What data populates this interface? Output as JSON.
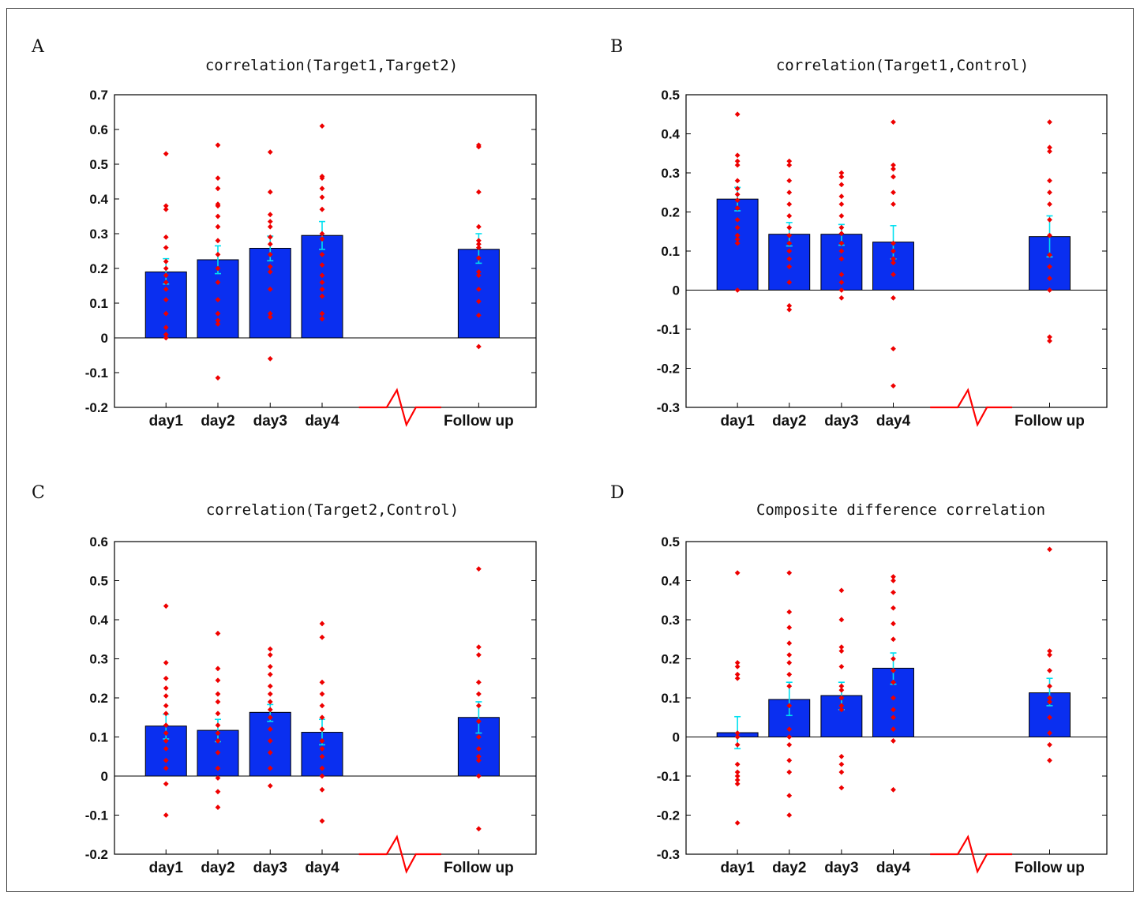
{
  "panels": [
    {
      "letter": "A",
      "chart_data": {
        "type": "bar",
        "title": "correlation(Target1,Target2)",
        "categories": [
          "day1",
          "day2",
          "day3",
          "day4",
          "Follow up"
        ],
        "values": [
          0.19,
          0.225,
          0.258,
          0.295,
          0.255
        ],
        "error_lo": [
          0.155,
          0.185,
          0.222,
          0.255,
          0.215
        ],
        "error_hi": [
          0.228,
          0.265,
          0.293,
          0.335,
          0.3
        ],
        "points": [
          [
            0.53,
            0.38,
            0.37,
            0.29,
            0.26,
            0.22,
            0.2,
            0.18,
            0.16,
            0.14,
            0.11,
            0.07,
            0.03,
            0.01,
            0.0
          ],
          [
            0.555,
            0.46,
            0.43,
            0.385,
            0.38,
            0.35,
            0.32,
            0.28,
            0.24,
            0.2,
            0.16,
            0.11,
            0.07,
            0.05,
            0.04,
            -0.115
          ],
          [
            0.535,
            0.42,
            0.355,
            0.335,
            0.32,
            0.29,
            0.27,
            0.24,
            0.205,
            0.19,
            0.14,
            0.07,
            0.06,
            -0.06
          ],
          [
            0.61,
            0.465,
            0.46,
            0.43,
            0.405,
            0.37,
            0.3,
            0.285,
            0.24,
            0.21,
            0.18,
            0.16,
            0.14,
            0.12,
            0.07,
            0.055
          ],
          [
            0.555,
            0.55,
            0.42,
            0.32,
            0.28,
            0.27,
            0.26,
            0.23,
            0.19,
            0.18,
            0.14,
            0.105,
            0.065,
            -0.025
          ]
        ],
        "ylim": [
          -0.2,
          0.7
        ],
        "yticks": [
          "-0.2",
          "-0.1",
          "0",
          "0.1",
          "0.2",
          "0.3",
          "0.4",
          "0.5",
          "0.6",
          "0.7"
        ]
      }
    },
    {
      "letter": "B",
      "chart_data": {
        "type": "bar",
        "title": "correlation(Target1,Control)",
        "categories": [
          "day1",
          "day2",
          "day3",
          "day4",
          "Follow up"
        ],
        "values": [
          0.233,
          0.143,
          0.143,
          0.123,
          0.137
        ],
        "error_lo": [
          0.203,
          0.113,
          0.115,
          0.08,
          0.085
        ],
        "error_hi": [
          0.263,
          0.173,
          0.168,
          0.165,
          0.19
        ],
        "points": [
          [
            0.45,
            0.345,
            0.33,
            0.32,
            0.28,
            0.26,
            0.245,
            0.23,
            0.21,
            0.18,
            0.16,
            0.14,
            0.13,
            0.12,
            0.0
          ],
          [
            0.33,
            0.32,
            0.28,
            0.25,
            0.22,
            0.19,
            0.16,
            0.14,
            0.12,
            0.1,
            0.08,
            0.06,
            0.02,
            -0.04,
            -0.05
          ],
          [
            0.3,
            0.29,
            0.27,
            0.24,
            0.22,
            0.19,
            0.16,
            0.145,
            0.12,
            0.1,
            0.08,
            0.04,
            0.02,
            0.0,
            -0.02
          ],
          [
            0.43,
            0.32,
            0.31,
            0.29,
            0.25,
            0.22,
            0.12,
            0.1,
            0.08,
            0.07,
            0.04,
            -0.02,
            -0.15,
            -0.245
          ],
          [
            0.43,
            0.365,
            0.355,
            0.28,
            0.25,
            0.22,
            0.18,
            0.14,
            0.09,
            0.06,
            0.03,
            0.0,
            -0.12,
            -0.13
          ]
        ],
        "ylim": [
          -0.3,
          0.5
        ],
        "yticks": [
          "-0.3",
          "-0.2",
          "-0.1",
          "0",
          "0.1",
          "0.2",
          "0.3",
          "0.4",
          "0.5"
        ]
      }
    },
    {
      "letter": "C",
      "chart_data": {
        "type": "bar",
        "title": "correlation(Target2,Control)",
        "categories": [
          "day1",
          "day2",
          "day3",
          "day4",
          "Follow up"
        ],
        "values": [
          0.128,
          0.117,
          0.163,
          0.112,
          0.15
        ],
        "error_lo": [
          0.095,
          0.088,
          0.14,
          0.08,
          0.11
        ],
        "error_hi": [
          0.158,
          0.145,
          0.183,
          0.145,
          0.19
        ],
        "points": [
          [
            0.435,
            0.29,
            0.25,
            0.225,
            0.205,
            0.18,
            0.16,
            0.13,
            0.11,
            0.09,
            0.07,
            0.04,
            0.02,
            -0.02,
            -0.1
          ],
          [
            0.365,
            0.275,
            0.245,
            0.21,
            0.19,
            0.16,
            0.13,
            0.11,
            0.09,
            0.06,
            0.02,
            -0.005,
            -0.04,
            -0.08
          ],
          [
            0.325,
            0.31,
            0.28,
            0.26,
            0.23,
            0.21,
            0.19,
            0.17,
            0.15,
            0.12,
            0.09,
            0.06,
            0.02,
            -0.025
          ],
          [
            0.39,
            0.355,
            0.24,
            0.21,
            0.18,
            0.15,
            0.12,
            0.09,
            0.07,
            0.05,
            0.02,
            0.0,
            -0.035,
            -0.115
          ],
          [
            0.53,
            0.33,
            0.31,
            0.24,
            0.21,
            0.18,
            0.14,
            0.1,
            0.07,
            0.05,
            0.04,
            0.0,
            -0.135
          ]
        ],
        "ylim": [
          -0.2,
          0.6
        ],
        "yticks": [
          "-0.2",
          "-0.1",
          "0",
          "0.1",
          "0.2",
          "0.3",
          "0.4",
          "0.5",
          "0.6"
        ]
      }
    },
    {
      "letter": "D",
      "chart_data": {
        "type": "bar",
        "title": "Composite difference correlation",
        "categories": [
          "day1",
          "day2",
          "day3",
          "day4",
          "Follow up"
        ],
        "values": [
          0.011,
          0.096,
          0.106,
          0.176,
          0.113
        ],
        "error_lo": [
          -0.03,
          0.055,
          0.07,
          0.135,
          0.08
        ],
        "error_hi": [
          0.052,
          0.14,
          0.14,
          0.215,
          0.15
        ],
        "points": [
          [
            0.42,
            0.19,
            0.18,
            0.16,
            0.15,
            0.01,
            0.0,
            -0.02,
            -0.07,
            -0.09,
            -0.1,
            -0.11,
            -0.12,
            -0.22
          ],
          [
            0.42,
            0.32,
            0.28,
            0.24,
            0.21,
            0.19,
            0.16,
            0.13,
            0.08,
            0.02,
            0.0,
            -0.02,
            -0.06,
            -0.09,
            -0.15,
            -0.2
          ],
          [
            0.375,
            0.3,
            0.23,
            0.22,
            0.18,
            0.13,
            0.12,
            0.1,
            0.08,
            0.07,
            -0.05,
            -0.07,
            -0.09,
            -0.13
          ],
          [
            0.41,
            0.4,
            0.37,
            0.33,
            0.29,
            0.25,
            0.2,
            0.17,
            0.14,
            0.1,
            0.07,
            0.05,
            0.02,
            -0.01,
            -0.135
          ],
          [
            0.48,
            0.22,
            0.21,
            0.17,
            0.13,
            0.1,
            0.09,
            0.05,
            0.01,
            -0.02,
            -0.06
          ]
        ],
        "ylim": [
          -0.3,
          0.5
        ],
        "yticks": [
          "-0.3",
          "-0.2",
          "-0.1",
          "0",
          "0.1",
          "0.2",
          "0.3",
          "0.4",
          "0.5"
        ]
      }
    }
  ],
  "colors": {
    "bar_fill": "#0a2ff0",
    "bar_edge": "#000000",
    "point": "#ee0000",
    "errorbar": "#00e0f0",
    "axis": "#000000",
    "break_mark": "#ff0000"
  }
}
